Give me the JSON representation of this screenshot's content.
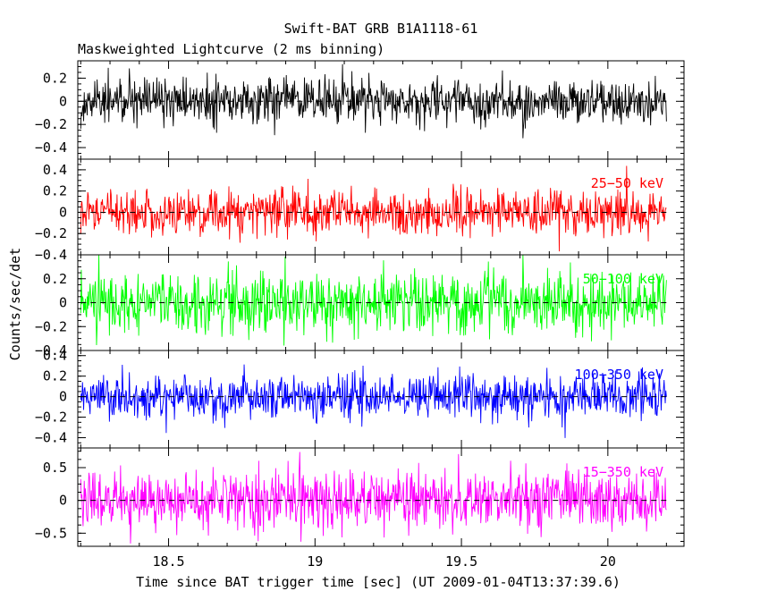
{
  "chart_data": {
    "type": "line",
    "title": "Swift-BAT GRB B1A1118-61",
    "subtitle": "Maskweighted Lightcurve (2 ms binning)",
    "xlabel": "Time since BAT trigger time [sec] (UT 2009-01-04T13:37:39.6)",
    "ylabel": "Counts/sec/det",
    "xlim": [
      18.19,
      20.26
    ],
    "x_range_data": [
      18.2,
      20.2
    ],
    "bin_width_sec": 0.002,
    "x_ticks": [
      "18.5",
      "19",
      "19.5",
      "20"
    ],
    "panels": [
      {
        "name": "",
        "color": "#000000",
        "ylim": [
          -0.5,
          0.35
        ],
        "y_ticks": [
          "0.2",
          "0",
          "−0.2",
          "−0.4"
        ],
        "noise_sigma": 0.1
      },
      {
        "name": "25−50 keV",
        "color": "#ff0000",
        "ylim": [
          -0.4,
          0.5
        ],
        "y_ticks": [
          "0.4",
          "0.2",
          "0",
          "−0.2",
          "−0.4"
        ],
        "noise_sigma": 0.11
      },
      {
        "name": "50−100 keV",
        "color": "#00ff00",
        "ylim": [
          -0.4,
          0.4
        ],
        "y_ticks": [
          "0.2",
          "0",
          "−0.2",
          "−0.4"
        ],
        "noise_sigma": 0.13
      },
      {
        "name": "100−350 keV",
        "color": "#0000ff",
        "ylim": [
          -0.5,
          0.45
        ],
        "y_ticks": [
          "0.4",
          "0.2",
          "0",
          "−0.2",
          "−0.4"
        ],
        "noise_sigma": 0.11
      },
      {
        "name": "15−350 keV",
        "color": "#ff00ff",
        "ylim": [
          -0.7,
          0.8
        ],
        "y_ticks": [
          "0.5",
          "0",
          "−0.5"
        ],
        "noise_sigma": 0.22
      }
    ]
  }
}
